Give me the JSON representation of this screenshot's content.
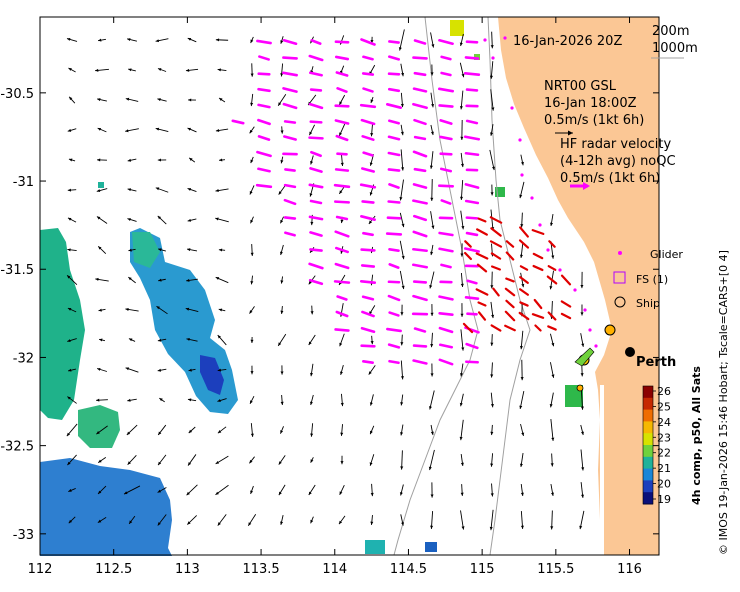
{
  "chart_data": {
    "type": "map",
    "title": "16-Jan-2026 20Z",
    "x_ticks": [
      "112",
      "112.5",
      "113",
      "113.5",
      "114",
      "114.5",
      "115",
      "115.5",
      "116"
    ],
    "y_ticks": [
      "-30.5",
      "-31",
      "-31.5",
      "-32",
      "-32.5",
      "-33"
    ],
    "xlim": [
      112,
      116.2
    ],
    "ylim": [
      -33.12,
      -30.07
    ],
    "isobath_labels": [
      "200m",
      "1000m"
    ],
    "model_label": [
      "NRT00 GSL",
      "16-Jan 18:00Z",
      "0.5m/s (1kt 6h)"
    ],
    "radar_label": [
      "HF radar velocity",
      "(4-12h avg) noQC",
      "0.5m/s (1kt 6h)"
    ],
    "legend": {
      "glider": "Glider",
      "fs": "FS (1)",
      "ship": "Ship"
    },
    "place_label": "Perth",
    "colorbar": {
      "ticks": [
        "26",
        "25",
        "24",
        "23",
        "22",
        "21",
        "20",
        "19"
      ],
      "colors": [
        "#8b0000",
        "#c62800",
        "#ef6d00",
        "#f6b800",
        "#d7e200",
        "#6fd23c",
        "#1fb29a",
        "#1a86d8",
        "#1c3fbd",
        "#0a107a"
      ],
      "label": "4h comp, p50, All Sats"
    },
    "credit": "© IMOS 19-Jan-2026 15:46 Hobart; Tscale=CARS+[0 4]"
  },
  "colors": {
    "land": "#fbc795",
    "model_arrow": "#000000",
    "radar_arrow": "#ff00ff",
    "hf_red": "#e00000",
    "isobath": "#a0a0a0"
  }
}
